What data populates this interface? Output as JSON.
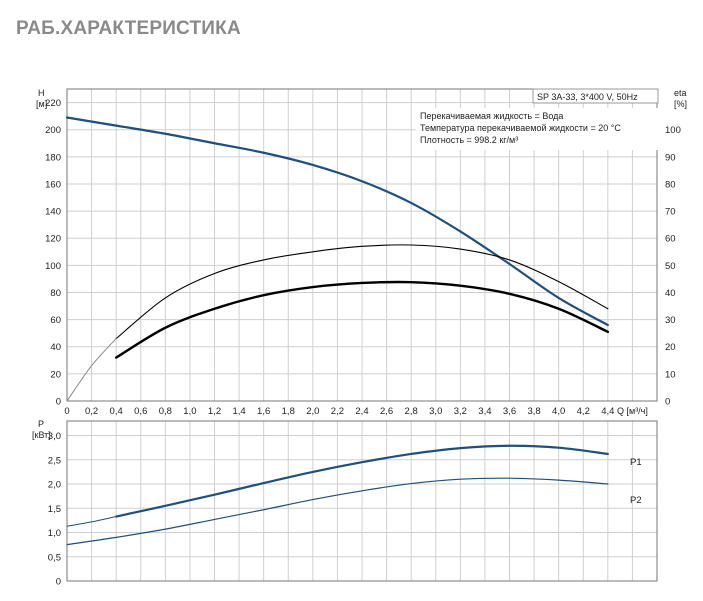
{
  "page": {
    "title": "РАБ.ХАРАКТЕРИСТИКА"
  },
  "header": {
    "pump_label": "SP 3A-33, 3*400 V, 50Hz",
    "info_lines": [
      "Перекачиваемая жидкость = Вода",
      "Температура перекачиваемой жидкости = 20 °C",
      "Плотность = 998.2 кг/м³"
    ]
  },
  "chart_data": [
    {
      "type": "line",
      "title": "",
      "xlabel": "Q [м³/ч]",
      "ylabel": "H [м]",
      "y2label": "eta [%]",
      "x_unit_label": "Q [м³/ч]",
      "y_label_top": "H",
      "y_label_unit": "[м]",
      "y2_label_top": "eta",
      "y2_label_unit": "[%]",
      "xlim": [
        0,
        4.8
      ],
      "ylim": [
        0,
        230
      ],
      "y2lim": [
        0,
        115
      ],
      "grid": true,
      "x_ticks": [
        "0",
        "0,2",
        "0,4",
        "0,6",
        "0,8",
        "1,0",
        "1,2",
        "1,4",
        "1,6",
        "1,8",
        "2,0",
        "2,2",
        "2,4",
        "2,6",
        "2,8",
        "3,0",
        "3,2",
        "3,4",
        "3,6",
        "3,8",
        "4,0",
        "4,2",
        "4,4"
      ],
      "y_ticks": [
        "0",
        "20",
        "40",
        "60",
        "80",
        "100",
        "120",
        "140",
        "160",
        "180",
        "200",
        "220"
      ],
      "y2_ticks": [
        "0",
        "10",
        "20",
        "30",
        "40",
        "50",
        "60",
        "70",
        "80",
        "90",
        "100"
      ],
      "series": [
        {
          "axis": "left",
          "color": "#1f4f7d",
          "width": 2.2,
          "x": [
            0,
            0.4,
            0.8,
            1.2,
            1.6,
            2.0,
            2.4,
            2.8,
            3.2,
            3.6,
            4.0,
            4.4
          ],
          "y": [
            209,
            203,
            197,
            190,
            183,
            174,
            162,
            146,
            125,
            101,
            76,
            56
          ]
        },
        {
          "axis": "right",
          "color": "#000000",
          "width": 1.1,
          "x": [
            0.4,
            0.8,
            1.2,
            1.6,
            2.0,
            2.4,
            2.8,
            3.2,
            3.6,
            4.0,
            4.4
          ],
          "y": [
            23,
            38,
            47,
            52,
            55,
            57,
            57.5,
            56,
            52,
            44,
            34
          ]
        },
        {
          "axis": "right",
          "color": "#8a8a8a",
          "width": 1,
          "x": [
            0,
            0.2,
            0.4
          ],
          "y": [
            0,
            13,
            23
          ]
        },
        {
          "axis": "right",
          "color": "#000000",
          "width": 2.4,
          "x": [
            0.4,
            0.8,
            1.2,
            1.6,
            2.0,
            2.4,
            2.8,
            3.2,
            3.6,
            4.0,
            4.4
          ],
          "y": [
            16,
            27,
            34,
            39,
            42,
            43.5,
            43.8,
            42.5,
            39.5,
            34,
            25.5
          ]
        }
      ]
    },
    {
      "type": "line",
      "title": "",
      "ylabel": "P [кВт]",
      "y_label_top": "P",
      "y_label_unit": "[кВт]",
      "xlim": [
        0,
        4.8
      ],
      "ylim": [
        0,
        3.3
      ],
      "grid": true,
      "y_ticks": [
        "0",
        "0,5",
        "1,0",
        "1,5",
        "2,0",
        "2,5",
        "3,0"
      ],
      "series": [
        {
          "name": "P1",
          "color": "#1f4f7d",
          "width": 2.2,
          "x": [
            0.4,
            0.8,
            1.2,
            1.6,
            2.0,
            2.4,
            2.8,
            3.2,
            3.6,
            4.0,
            4.4
          ],
          "y": [
            1.33,
            1.55,
            1.78,
            2.02,
            2.25,
            2.45,
            2.62,
            2.74,
            2.79,
            2.75,
            2.62
          ]
        },
        {
          "name": "",
          "color": "#1f4f7d",
          "width": 1,
          "x": [
            0,
            0.2,
            0.4
          ],
          "y": [
            1.13,
            1.22,
            1.33
          ]
        },
        {
          "name": "P2",
          "color": "#1f4f7d",
          "width": 1.2,
          "x": [
            0,
            0.4,
            0.8,
            1.2,
            1.6,
            2.0,
            2.4,
            2.8,
            3.2,
            3.6,
            4.0,
            4.4
          ],
          "y": [
            0.75,
            0.9,
            1.07,
            1.27,
            1.47,
            1.68,
            1.86,
            2.01,
            2.1,
            2.12,
            2.08,
            2.0
          ]
        }
      ]
    }
  ]
}
